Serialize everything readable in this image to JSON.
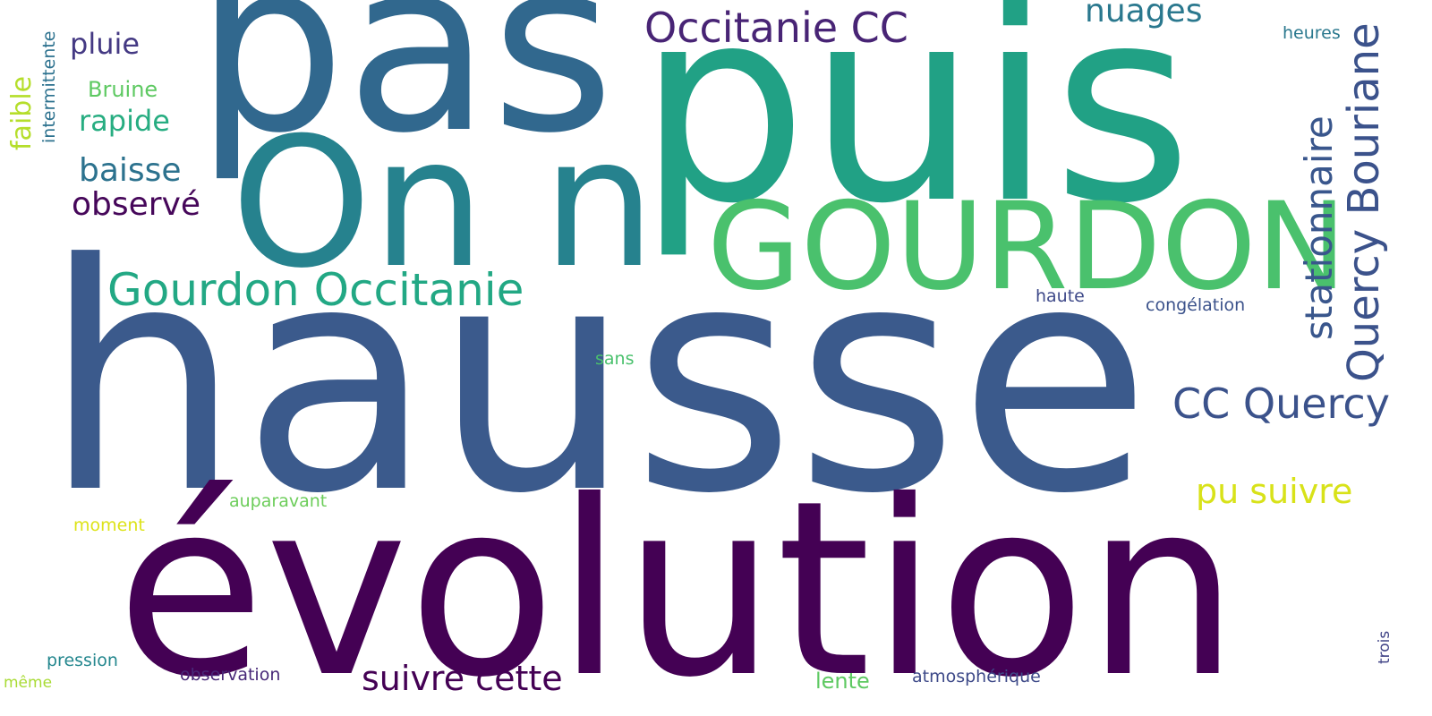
{
  "words": [
    {
      "text": "hausse",
      "color": "#3b5a8c"
    },
    {
      "text": "évolution",
      "color": "#440154"
    },
    {
      "text": "puis",
      "color": "#21a185"
    },
    {
      "text": "pas",
      "color": "#31688e"
    },
    {
      "text": "On n",
      "color": "#26828e"
    },
    {
      "text": "GOURDON",
      "color": "#4ac16d"
    },
    {
      "text": "Quercy Bouriane",
      "color": "#3b528b"
    },
    {
      "text": "Gourdon Occitanie",
      "color": "#22a884"
    },
    {
      "text": "Occitanie CC",
      "color": "#482475"
    },
    {
      "text": "CC Quercy",
      "color": "#3b528b"
    },
    {
      "text": "stationnaire",
      "color": "#39568c"
    },
    {
      "text": "pu suivre",
      "color": "#d8e219"
    },
    {
      "text": "suivre cette",
      "color": "#440154"
    },
    {
      "text": "nuages",
      "color": "#2a788e"
    },
    {
      "text": "baisse",
      "color": "#2c728e"
    },
    {
      "text": "observé",
      "color": "#46075a"
    },
    {
      "text": "rapide",
      "color": "#27ad81"
    },
    {
      "text": "pluie",
      "color": "#443983"
    },
    {
      "text": "faible",
      "color": "#b5de2b"
    },
    {
      "text": "Bruine",
      "color": "#5ec962"
    },
    {
      "text": "intermittente",
      "color": "#2c718e"
    },
    {
      "text": "heures",
      "color": "#2a788e"
    },
    {
      "text": "haute",
      "color": "#3e4989"
    },
    {
      "text": "congélation",
      "color": "#3b528b"
    },
    {
      "text": "sans",
      "color": "#4ac16d"
    },
    {
      "text": "auparavant",
      "color": "#6ccd5a"
    },
    {
      "text": "moment",
      "color": "#dde318"
    },
    {
      "text": "pression",
      "color": "#24878e"
    },
    {
      "text": "observation",
      "color": "#482878"
    },
    {
      "text": "atmosphérique",
      "color": "#3e4a89"
    },
    {
      "text": "lente",
      "color": "#5ec962"
    },
    {
      "text": "même",
      "color": "#a8db34"
    },
    {
      "text": "trois",
      "color": "#414487"
    }
  ]
}
